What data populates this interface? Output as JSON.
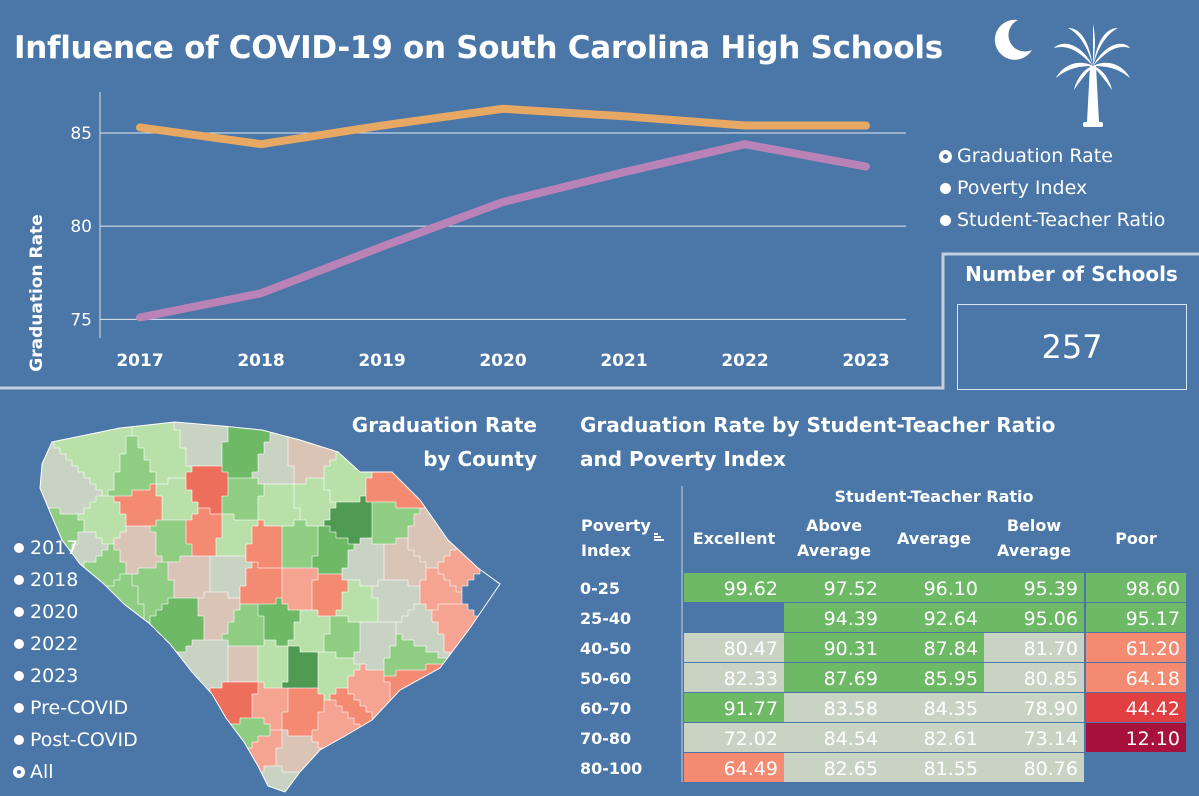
{
  "dashboard": {
    "title": "Influence of COVID-19 on South Carolina High Schools"
  },
  "icons": [
    "crescent-moon-icon",
    "palmetto-tree-icon"
  ],
  "colors": {
    "background": "#4a76a8",
    "graduation_line": "#e6a862",
    "ratio_line": "#b983b8",
    "excellent": "#6db966",
    "neutral": "#c9d3c4",
    "poor": "#f48a72",
    "very_poor": "#e23f43",
    "worst": "#a8123a"
  },
  "measure_selector": {
    "options": [
      {
        "label": "Graduation Rate",
        "selected": true
      },
      {
        "label": "Poverty Index",
        "selected": false
      },
      {
        "label": "Student-Teacher Ratio",
        "selected": false
      }
    ]
  },
  "kpi": {
    "title": "Number of Schools",
    "value": "257"
  },
  "map": {
    "title_line1": "Graduation Rate",
    "title_line2": "by County"
  },
  "year_filter": {
    "options": [
      {
        "label": "2017",
        "selected": false
      },
      {
        "label": "2018",
        "selected": false
      },
      {
        "label": "2020",
        "selected": false
      },
      {
        "label": "2022",
        "selected": false
      },
      {
        "label": "2023",
        "selected": false
      },
      {
        "label": "Pre-COVID",
        "selected": false
      },
      {
        "label": "Post-COVID",
        "selected": false
      },
      {
        "label": "All",
        "selected": true
      }
    ]
  },
  "chart_data": [
    {
      "type": "line",
      "title": "",
      "xlabel": "",
      "ylabel": "Graduation Rate",
      "x": [
        "2017",
        "2018",
        "2019",
        "2020",
        "2021",
        "2022",
        "2023"
      ],
      "ylim": [
        74,
        87.2
      ],
      "yticks": [
        75,
        80,
        85
      ],
      "grid": true,
      "series": [
        {
          "values": [
            85.3,
            84.4,
            85.4,
            86.3,
            85.9,
            85.4,
            85.4
          ],
          "color": "#e6a862"
        },
        {
          "values": [
            75.1,
            76.4,
            78.9,
            81.3,
            82.9,
            84.4,
            83.2
          ],
          "color": "#b983b8"
        }
      ]
    },
    {
      "type": "heatmap",
      "title_line1": "Graduation Rate by Student-Teacher Ratio",
      "title_line2": "and Poverty Index",
      "column_group_label": "Student-Teacher Ratio",
      "row_header_line1": "Poverty",
      "row_header_line2": "Index",
      "sort_icon": "sort-icon",
      "columns": [
        {
          "line1": "Excellent",
          "line2": ""
        },
        {
          "line1": "Above",
          "line2": "Average"
        },
        {
          "line1": "Average",
          "line2": ""
        },
        {
          "line1": "Below",
          "line2": "Average"
        },
        {
          "line1": "Poor",
          "line2": ""
        }
      ],
      "rows": [
        "0-25",
        "25-40",
        "40-50",
        "50-60",
        "60-70",
        "70-80",
        "80-100"
      ],
      "values": [
        [
          "99.62",
          "97.52",
          "96.10",
          "95.39",
          "98.60"
        ],
        [
          null,
          "94.39",
          "92.64",
          "95.06",
          "95.17"
        ],
        [
          "80.47",
          "90.31",
          "87.84",
          "81.70",
          "61.20"
        ],
        [
          "82.33",
          "87.69",
          "85.95",
          "80.85",
          "64.18"
        ],
        [
          "91.77",
          "83.58",
          "84.35",
          "78.90",
          "44.42"
        ],
        [
          "72.02",
          "84.54",
          "82.61",
          "73.14",
          "12.10"
        ],
        [
          "64.49",
          "82.65",
          "81.55",
          "80.76",
          null
        ]
      ]
    }
  ]
}
